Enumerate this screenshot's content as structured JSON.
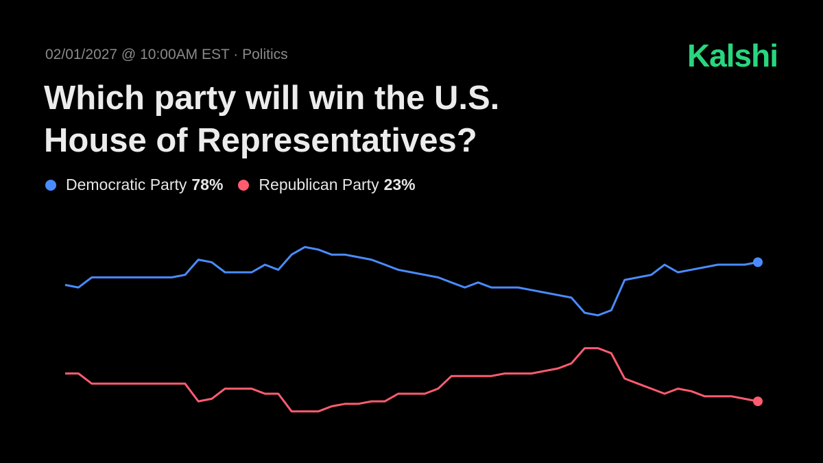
{
  "chart_data": {
    "type": "line",
    "meta": "02/01/2027 @ 10:00AM EST · Politics",
    "brand": "Kalshi",
    "title": "Which party will win the U.S. House of Representatives?",
    "ylim": [
      10,
      90
    ],
    "series": [
      {
        "name": "Democratic Party",
        "legend_value": "78%",
        "color": "#4a8cff",
        "values": [
          69,
          68,
          72,
          72,
          72,
          72,
          72,
          72,
          72,
          73,
          79,
          78,
          74,
          74,
          74,
          77,
          75,
          81,
          84,
          83,
          81,
          81,
          80,
          79,
          77,
          75,
          74,
          73,
          72,
          70,
          68,
          70,
          68,
          68,
          68,
          67,
          66,
          65,
          64,
          58,
          57,
          59,
          71,
          72,
          73,
          77,
          74,
          75,
          76,
          77,
          77,
          77,
          78
        ]
      },
      {
        "name": "Republican Party",
        "legend_value": "23%",
        "color": "#ff5c70",
        "values": [
          34,
          34,
          30,
          30,
          30,
          30,
          30,
          30,
          30,
          30,
          23,
          24,
          28,
          28,
          28,
          26,
          26,
          19,
          19,
          19,
          21,
          22,
          22,
          23,
          23,
          26,
          26,
          26,
          28,
          33,
          33,
          33,
          33,
          34,
          34,
          34,
          35,
          36,
          38,
          44,
          44,
          42,
          32,
          30,
          28,
          26,
          28,
          27,
          25,
          25,
          25,
          24,
          23
        ]
      }
    ]
  }
}
